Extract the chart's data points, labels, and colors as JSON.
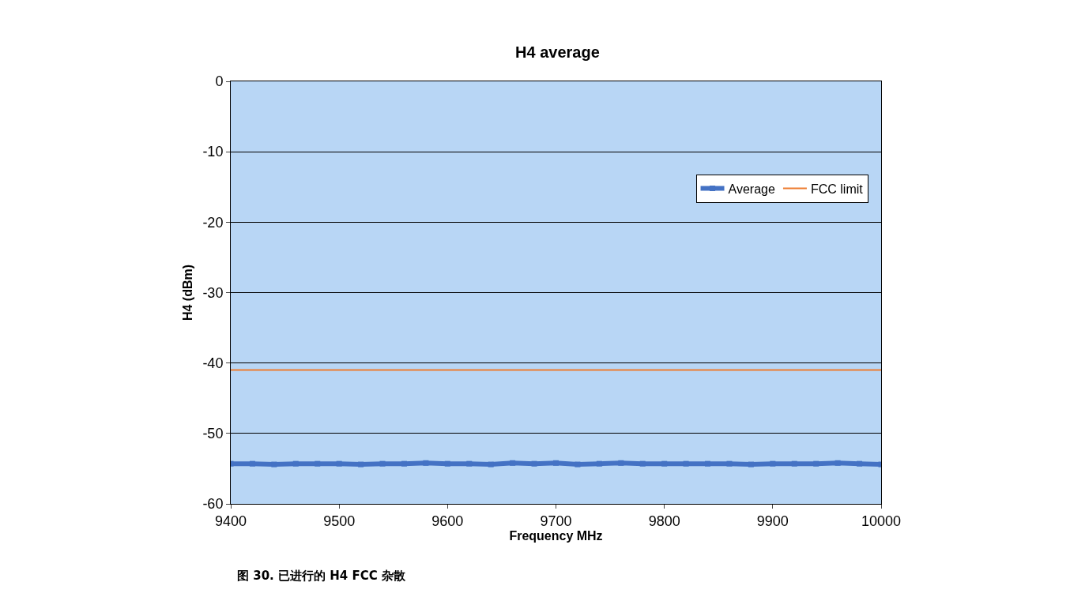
{
  "chart_data": {
    "type": "line",
    "title": "H4 average",
    "xlabel": "Frequency MHz",
    "ylabel": "H4 (dBm)",
    "annotations": [
      "图 30. 已进行的 H4 FCC 杂散"
    ],
    "x": [
      9400,
      9420,
      9440,
      9460,
      9480,
      9500,
      9520,
      9540,
      9560,
      9580,
      9600,
      9620,
      9640,
      9660,
      9680,
      9700,
      9720,
      9740,
      9760,
      9780,
      9800,
      9820,
      9840,
      9860,
      9880,
      9900,
      9920,
      9940,
      9960,
      9980,
      10000
    ],
    "series": [
      {
        "name": "Average",
        "color": "#4472c4",
        "marker": "square",
        "values": [
          -54.3,
          -54.3,
          -54.4,
          -54.3,
          -54.3,
          -54.3,
          -54.4,
          -54.3,
          -54.3,
          -54.2,
          -54.3,
          -54.3,
          -54.4,
          -54.2,
          -54.3,
          -54.2,
          -54.4,
          -54.3,
          -54.2,
          -54.3,
          -54.3,
          -54.3,
          -54.3,
          -54.3,
          -54.4,
          -54.3,
          -54.3,
          -54.3,
          -54.2,
          -54.3,
          -54.4
        ]
      },
      {
        "name": "FCC limit",
        "color": "#ed7d31",
        "marker": "none",
        "values": [
          -41,
          -41,
          -41,
          -41,
          -41,
          -41,
          -41,
          -41,
          -41,
          -41,
          -41,
          -41,
          -41,
          -41,
          -41,
          -41,
          -41,
          -41,
          -41,
          -41,
          -41,
          -41,
          -41,
          -41,
          -41,
          -41,
          -41,
          -41,
          -41,
          -41,
          -41
        ]
      }
    ],
    "xlim": [
      9400,
      10000
    ],
    "xticks": [
      9400,
      9500,
      9600,
      9700,
      9800,
      9900,
      10000
    ],
    "ylim": [
      -60,
      0
    ],
    "yticks": [
      0,
      -10,
      -20,
      -30,
      -40,
      -50,
      -60
    ],
    "grid": "y",
    "legend": "top right"
  }
}
